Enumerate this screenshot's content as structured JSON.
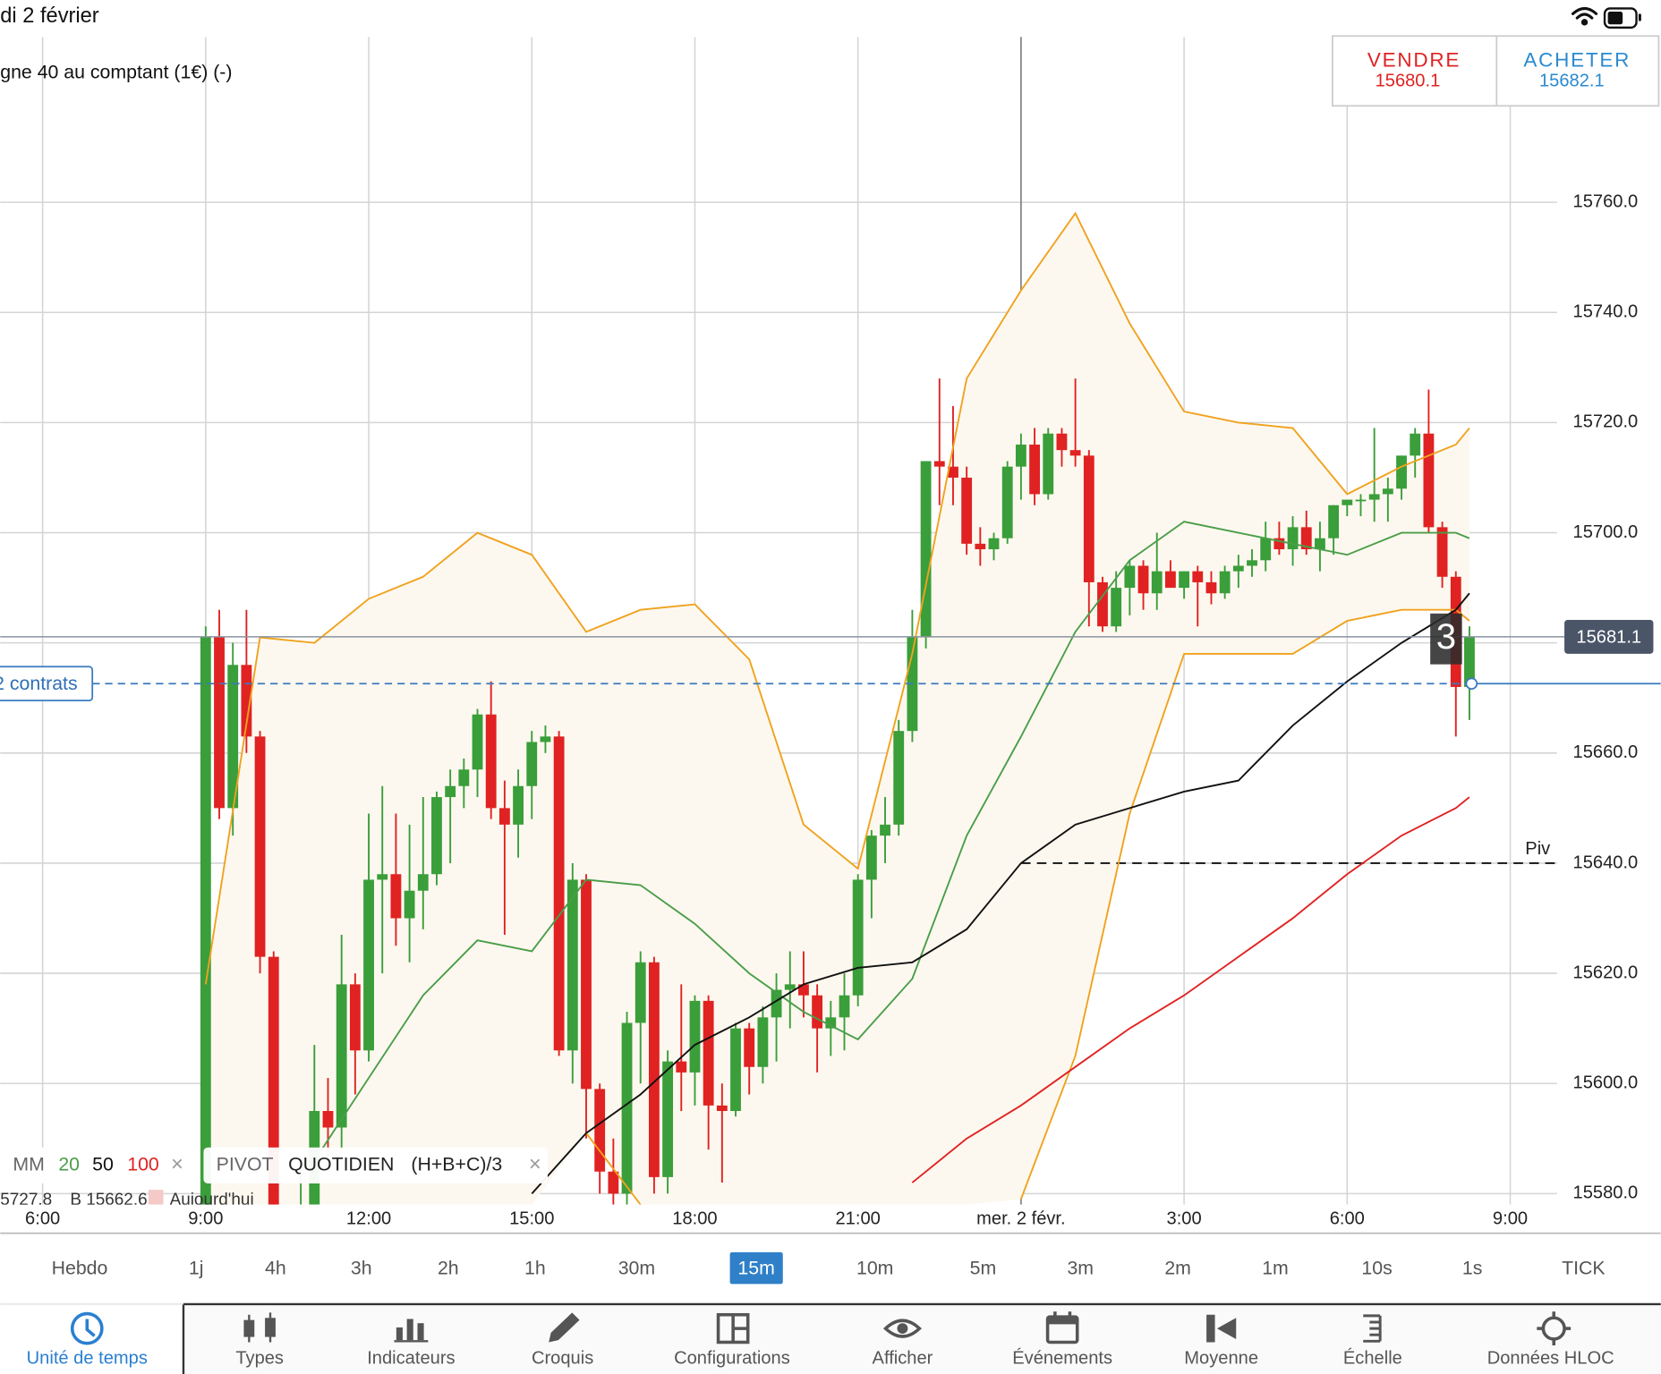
{
  "status_bar": {
    "date": "di 2 février"
  },
  "instrument": "gne 40 au comptant (1€) (-)",
  "trade": {
    "sell_label": "VENDRE",
    "sell_price": 15680.1,
    "buy_label": "ACHETER",
    "buy_price": 15682.1
  },
  "chart_data": {
    "type": "candlestick",
    "xlim": [
      -0.78,
      29.77
    ],
    "xticks": [
      {
        "value": 0,
        "label": "6:00"
      },
      {
        "value": 3,
        "label": "9:00"
      },
      {
        "value": 6,
        "label": "12:00"
      },
      {
        "value": 9,
        "label": "15:00"
      },
      {
        "value": 12,
        "label": "18:00"
      },
      {
        "value": 15,
        "label": "21:00"
      },
      {
        "value": 18,
        "label": "mer. 2 févr."
      },
      {
        "value": 21,
        "label": "3:00"
      },
      {
        "value": 24,
        "label": "6:00"
      },
      {
        "value": 27,
        "label": "9:00"
      }
    ],
    "ylim": [
      15578,
      15790
    ],
    "yticks": [
      {
        "value": 15580,
        "label": "15580.0"
      },
      {
        "value": 15600,
        "label": "15600.0"
      },
      {
        "value": 15620,
        "label": "15620.0"
      },
      {
        "value": 15640,
        "label": "15640.0"
      },
      {
        "value": 15660,
        "label": "15660.0"
      },
      {
        "value": 15680,
        "label": "15680.0"
      },
      {
        "value": 15700,
        "label": "15700.0"
      },
      {
        "value": 15720,
        "label": "15720.0"
      },
      {
        "value": 15740,
        "label": "15740.0"
      },
      {
        "value": 15760,
        "label": "15760.0"
      }
    ],
    "grid": true,
    "candles": {
      "up_color": "#3a9e3a",
      "down_color": "#e02222",
      "x": [
        3,
        3.25,
        3.5,
        3.75,
        4,
        4.25,
        4.5,
        4.75,
        5,
        5.25,
        5.5,
        5.75,
        6,
        6.25,
        6.5,
        6.75,
        7,
        7.25,
        7.5,
        7.75,
        8,
        8.25,
        8.5,
        8.75,
        9,
        9.25,
        9.5,
        9.75,
        10,
        10.25,
        10.5,
        10.75,
        11,
        11.25,
        11.5,
        11.75,
        12,
        12.25,
        12.5,
        12.75,
        13,
        13.25,
        13.5,
        13.75,
        14,
        14.25,
        14.5,
        14.75,
        15,
        15.25,
        15.5,
        15.75,
        16,
        16.25,
        16.5,
        16.75,
        17,
        17.25,
        17.5,
        17.75,
        18,
        18.25,
        18.5,
        18.75,
        19,
        19.25,
        19.5,
        19.75,
        20,
        20.25,
        20.5,
        20.75,
        21,
        21.25,
        21.5,
        21.75,
        22,
        22.25,
        22.5,
        22.75,
        23,
        23.25,
        23.5,
        23.75,
        24,
        24.25,
        24.5,
        24.75,
        25,
        25.25,
        25.5,
        25.75,
        26,
        26.25
      ],
      "open": [
        15575,
        15681,
        15650,
        15676,
        15663,
        15623,
        15570,
        15572,
        15578,
        15595,
        15592,
        15618,
        15606,
        15637,
        15638,
        15630,
        15635,
        15638,
        15652,
        15654,
        15657,
        15667,
        15650,
        15647,
        15654,
        15662,
        15663,
        15606,
        15637,
        15599,
        15584,
        15580,
        15611,
        15622,
        15583,
        15604,
        15602,
        15615,
        15596,
        15595,
        15610,
        15603,
        15612,
        15617,
        15618,
        15616,
        15610,
        15612,
        15616,
        15637,
        15645,
        15647,
        15664,
        15681,
        15713,
        15712,
        15710,
        15698,
        15697,
        15699,
        15712,
        15716,
        15707,
        15718,
        15715,
        15714,
        15691,
        15683,
        15690,
        15694,
        15689,
        15693,
        15690,
        15693,
        15691,
        15689,
        15693,
        15694,
        15695,
        15699,
        15697,
        15701,
        15697,
        15699,
        15705,
        15706,
        15706,
        15707,
        15708,
        15714,
        15718,
        15701,
        15692,
        15672
      ],
      "high": [
        15683,
        15686,
        15680,
        15686,
        15664,
        15624,
        15578,
        15585,
        15607,
        15601,
        15627,
        15620,
        15649,
        15654,
        15649,
        15647,
        15652,
        15653,
        15657,
        15659,
        15668,
        15673,
        15655,
        15657,
        15664,
        15665,
        15664,
        15640,
        15638,
        15600,
        15590,
        15613,
        15624,
        15623,
        15606,
        15618,
        15616,
        15616,
        15600,
        15611,
        15611,
        15614,
        15620,
        15624,
        15624,
        15618,
        15615,
        15620,
        15638,
        15646,
        15652,
        15666,
        15686,
        15713,
        15728,
        15723,
        15712,
        15701,
        15700,
        15713,
        15718,
        15719,
        15719,
        15719,
        15728,
        15715,
        15692,
        15693,
        15695,
        15695,
        15700,
        15695,
        15693,
        15694,
        15693,
        15694,
        15696,
        15697,
        15702,
        15702,
        15703,
        15704,
        15702,
        15705,
        15706,
        15707,
        15719,
        15710,
        15714,
        15719,
        15726,
        15702,
        15693,
        15683
      ],
      "low": [
        15570,
        15648,
        15645,
        15660,
        15620,
        15565,
        15560,
        15568,
        15575,
        15585,
        15588,
        15598,
        15604,
        15620,
        15625,
        15622,
        15628,
        15636,
        15640,
        15650,
        15652,
        15648,
        15627,
        15641,
        15648,
        15660,
        15605,
        15600,
        15590,
        15580,
        15575,
        15578,
        15600,
        15580,
        15580,
        15595,
        15596,
        15588,
        15582,
        15594,
        15598,
        15600,
        15604,
        15610,
        15612,
        15602,
        15605,
        15606,
        15614,
        15630,
        15640,
        15645,
        15662,
        15679,
        15705,
        15705,
        15696,
        15694,
        15695,
        15698,
        15706,
        15705,
        15706,
        15712,
        15712,
        15683,
        15682,
        15682,
        15685,
        15686,
        15686,
        15690,
        15688,
        15683,
        15687,
        15688,
        15690,
        15692,
        15693,
        15696,
        15694,
        15696,
        15693,
        15696,
        15703,
        15703,
        15702,
        15702,
        15706,
        15710,
        15700,
        15690,
        15663,
        15666
      ],
      "close": [
        15681,
        15650,
        15676,
        15663,
        15623,
        15570,
        15572,
        15578,
        15595,
        15592,
        15618,
        15606,
        15637,
        15638,
        15630,
        15635,
        15638,
        15652,
        15654,
        15657,
        15667,
        15650,
        15647,
        15654,
        15662,
        15663,
        15606,
        15637,
        15599,
        15584,
        15580,
        15611,
        15622,
        15583,
        15604,
        15602,
        15615,
        15596,
        15595,
        15610,
        15603,
        15612,
        15617,
        15618,
        15616,
        15610,
        15612,
        15616,
        15637,
        15645,
        15647,
        15664,
        15681,
        15713,
        15712,
        15710,
        15698,
        15697,
        15699,
        15712,
        15716,
        15707,
        15718,
        15715,
        15714,
        15691,
        15683,
        15690,
        15694,
        15689,
        15693,
        15690,
        15693,
        15691,
        15689,
        15693,
        15694,
        15695,
        15699,
        15697,
        15701,
        15697,
        15699,
        15705,
        15706,
        15706,
        15707,
        15708,
        15714,
        15718,
        15701,
        15692,
        15672,
        15681.1
      ]
    },
    "overlay_x": [
      3,
      4,
      5,
      6,
      7,
      8,
      9,
      10,
      11,
      12,
      13,
      14,
      15,
      16,
      17,
      18,
      19,
      20,
      21,
      22,
      23,
      24,
      25,
      26,
      26.25
    ],
    "bollinger": {
      "color": "#f0a21e",
      "fill": "#fdf8ef",
      "upper": [
        15618,
        15681,
        15680,
        15688,
        15692,
        15700,
        15696,
        15682,
        15686,
        15687,
        15677,
        15647,
        15639,
        15678,
        15728,
        15744,
        15758,
        15738,
        15722,
        15720,
        15719,
        15707,
        15712,
        15716,
        15719
      ],
      "lower": [
        null,
        null,
        null,
        null,
        null,
        null,
        null,
        15591,
        15578,
        null,
        null,
        null,
        null,
        null,
        null,
        15579,
        15605,
        15649,
        15678,
        15678,
        15678,
        15684,
        15686,
        15686,
        15684
      ]
    },
    "moving_averages": [
      {
        "period": 20,
        "color": "#4a9e4a",
        "values": [
          null,
          null,
          15586,
          15601,
          15616,
          15626,
          15624,
          15637,
          15636,
          15629,
          15620,
          15613,
          15608,
          15619,
          15645,
          15663,
          15682,
          15695,
          15702,
          15700,
          15698,
          15696,
          15700,
          15700,
          15699
        ]
      },
      {
        "period": 50,
        "color": "#111111",
        "values": [
          null,
          null,
          null,
          null,
          null,
          null,
          15580,
          15591,
          15598,
          15607,
          15612,
          15618,
          15621,
          15622,
          15628,
          15640,
          15647,
          15650,
          15653,
          15655,
          15665,
          15673,
          15680,
          15686,
          15689
        ]
      },
      {
        "period": 100,
        "color": "#e02222",
        "values": [
          null,
          null,
          null,
          null,
          null,
          null,
          null,
          null,
          null,
          null,
          null,
          null,
          null,
          15582,
          15590,
          15596,
          15603,
          15610,
          15616,
          15623,
          15630,
          15638,
          15645,
          15650,
          15652
        ]
      }
    ],
    "pivot": {
      "value": 15640,
      "label": "Piv"
    },
    "order": {
      "value": 15672.6,
      "label": "2 contrats"
    },
    "last_price": {
      "value": 15681.1
    },
    "position_badge": 3
  },
  "legend": {
    "ma_label": "MM",
    "pivot": [
      "PIVOT",
      "QUOTIDIEN",
      "(H+B+C)/3"
    ],
    "info": [
      "5727.8",
      "B 15662.6",
      "Aujourd'hui"
    ]
  },
  "timeframes": [
    "Hebdo",
    "1j",
    "4h",
    "3h",
    "2h",
    "1h",
    "30m",
    "15m",
    "10m",
    "5m",
    "3m",
    "2m",
    "1m",
    "10s",
    "1s",
    "TICK"
  ],
  "toolbar": [
    "Unité de temps",
    "Types",
    "Indicateurs",
    "Croquis",
    "Configurations",
    "Afficher",
    "Événements",
    "Moyenne",
    "Échelle",
    "Données HLOC"
  ]
}
